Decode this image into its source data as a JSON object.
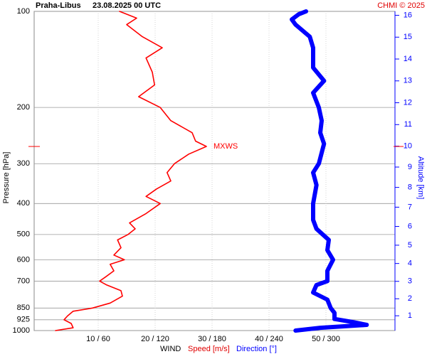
{
  "chart_data": {
    "type": "line",
    "title": "Praha-Libus",
    "subtitle": "23.08.2025 00 UTC",
    "credit": "CHMI © 2025",
    "ylabel": "Pressure [hPa]",
    "y2label": "Altitude [km]",
    "xlabel": "WIND",
    "xlabel_speed": "Speed [m/s]",
    "xlabel_direction": "Direction [°]",
    "annotation": "MXWS",
    "ylim": [
      1000,
      100
    ],
    "yscale": "log",
    "yticks": [
      100,
      200,
      300,
      400,
      500,
      600,
      700,
      850,
      925,
      1000
    ],
    "y2scale": "standard-atmosphere",
    "y2ticks": [
      1,
      2,
      3,
      4,
      5,
      6,
      7,
      8,
      9,
      10,
      11,
      12,
      13,
      14,
      15,
      16
    ],
    "xlim": [
      -1.25,
      62.125
    ],
    "x2lim": [
      -7.5,
      372.75
    ],
    "xticks": [
      {
        "value": 10,
        "label": "10 / 60"
      },
      {
        "value": 20,
        "label": "20 / 120"
      },
      {
        "value": 30,
        "label": "30 / 180"
      },
      {
        "value": 40,
        "label": "40 / 240"
      },
      {
        "value": 50,
        "label": "50 / 300"
      }
    ],
    "grid": true,
    "series": [
      {
        "name": "Speed [m/s]",
        "color": "#ff0000",
        "axis": "x",
        "pressure": [
          1000,
          980,
          950,
          925,
          900,
          870,
          850,
          820,
          780,
          750,
          720,
          700,
          680,
          650,
          620,
          600,
          580,
          550,
          520,
          500,
          480,
          460,
          430,
          400,
          380,
          360,
          340,
          320,
          300,
          280,
          265,
          255,
          240,
          220,
          200,
          185,
          170,
          155,
          140,
          130,
          120,
          110,
          105,
          100
        ],
        "values": [
          2.5,
          5.6,
          5.25,
          4,
          4.6,
          5.6,
          9,
          12.1,
          14.25,
          14,
          11.5,
          10.25,
          11.25,
          12.75,
          12.1,
          14.6,
          12.75,
          14,
          13.4,
          15.25,
          16.5,
          15.5,
          18.4,
          20.9,
          18.4,
          20.25,
          22.75,
          22.1,
          23.4,
          25.9,
          29,
          27.1,
          26.5,
          22.75,
          20.9,
          17.1,
          19.9,
          19.5,
          18.4,
          21.25,
          17.75,
          15,
          16.75,
          13.75
        ]
      },
      {
        "name": "Direction [°]",
        "color": "#0000ff",
        "axis": "x2",
        "pressure": [
          1000,
          980,
          960,
          940,
          920,
          880,
          850,
          800,
          760,
          720,
          700,
          650,
          600,
          560,
          520,
          480,
          450,
          400,
          350,
          320,
          300,
          260,
          240,
          220,
          200,
          180,
          165,
          150,
          130,
          120,
          110,
          106,
          102,
          100
        ],
        "values": [
          268,
          294,
          343,
          328,
          309,
          309,
          305,
          301.5,
          286.5,
          290,
          301.5,
          301.5,
          307.5,
          301.5,
          303,
          290,
          286.5,
          286.5,
          290,
          286.5,
          292.5,
          298,
          294,
          295.5,
          292.5,
          286.5,
          298,
          286.5,
          286.5,
          283,
          268,
          264,
          271.5,
          279
        ]
      }
    ]
  }
}
